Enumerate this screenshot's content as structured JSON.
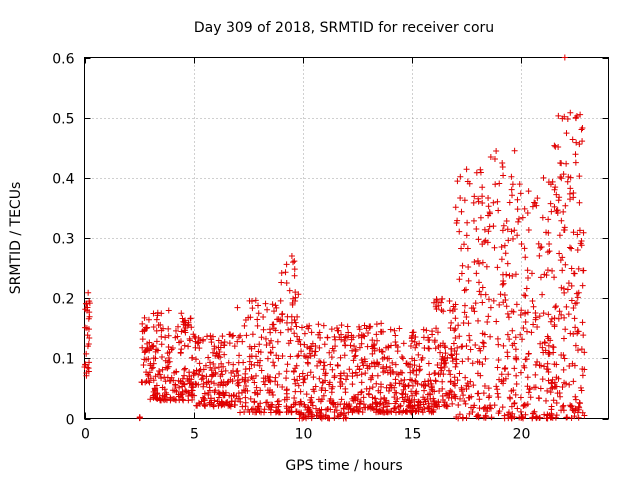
{
  "chart_data": {
    "type": "scatter",
    "title": "Day 309 of 2018, SRMTID for receiver coru",
    "xlabel": "GPS time / hours",
    "ylabel": "SRMTID / TECUs",
    "xlim": [
      0,
      24
    ],
    "ylim": [
      0,
      0.6
    ],
    "xticks": [
      0,
      5,
      10,
      15,
      20
    ],
    "xtick_labels": [
      "0",
      "5",
      "10",
      "15",
      "20"
    ],
    "yticks": [
      0,
      0.1,
      0.2,
      0.3,
      0.4,
      0.5,
      0.6
    ],
    "ytick_labels": [
      "0",
      "0.1",
      "0.2",
      "0.3",
      "0.4",
      "0.5",
      "0.6"
    ],
    "grid": true,
    "marker": "+",
    "series_color": "#e00000",
    "segments": [
      {
        "x_start": 0.0,
        "x_end": 0.25,
        "count": 28,
        "y_low": 0.07,
        "y_high": 0.225
      },
      {
        "x_start": 2.5,
        "x_end": 2.55,
        "count": 3,
        "y_low": 0.0,
        "y_high": 0.003
      },
      {
        "x_start": 2.6,
        "x_end": 3.0,
        "count": 35,
        "y_low": 0.06,
        "y_high": 0.17
      },
      {
        "x_start": 3.0,
        "x_end": 5.0,
        "count": 190,
        "y_low": 0.03,
        "y_high": 0.18
      },
      {
        "x_start": 5.0,
        "x_end": 7.0,
        "count": 170,
        "y_low": 0.02,
        "y_high": 0.14
      },
      {
        "x_start": 7.0,
        "x_end": 9.0,
        "count": 170,
        "y_low": 0.01,
        "y_high": 0.2
      },
      {
        "x_start": 9.0,
        "x_end": 9.8,
        "count": 70,
        "y_low": 0.01,
        "y_high": 0.27
      },
      {
        "x_start": 9.8,
        "x_end": 12.0,
        "count": 200,
        "y_low": 0.0,
        "y_high": 0.16
      },
      {
        "x_start": 12.0,
        "x_end": 14.0,
        "count": 190,
        "y_low": 0.01,
        "y_high": 0.16
      },
      {
        "x_start": 14.0,
        "x_end": 16.0,
        "count": 190,
        "y_low": 0.01,
        "y_high": 0.15
      },
      {
        "x_start": 16.0,
        "x_end": 17.0,
        "count": 110,
        "y_low": 0.02,
        "y_high": 0.2
      },
      {
        "x_start": 17.0,
        "x_end": 18.5,
        "count": 150,
        "y_low": 0.0,
        "y_high": 0.42
      },
      {
        "x_start": 18.5,
        "x_end": 20.0,
        "count": 140,
        "y_low": 0.0,
        "y_high": 0.45
      },
      {
        "x_start": 20.0,
        "x_end": 21.5,
        "count": 150,
        "y_low": 0.0,
        "y_high": 0.4
      },
      {
        "x_start": 21.5,
        "x_end": 22.9,
        "count": 170,
        "y_low": 0.0,
        "y_high": 0.51
      }
    ],
    "extra_points": [
      {
        "x": 22.0,
        "y": 0.6
      },
      {
        "x": 9.5,
        "y": 0.27
      },
      {
        "x": 9.55,
        "y": 0.26
      },
      {
        "x": 9.65,
        "y": 0.21
      },
      {
        "x": 19.7,
        "y": 0.445
      },
      {
        "x": 22.5,
        "y": 0.5
      },
      {
        "x": 22.7,
        "y": 0.505
      }
    ]
  }
}
